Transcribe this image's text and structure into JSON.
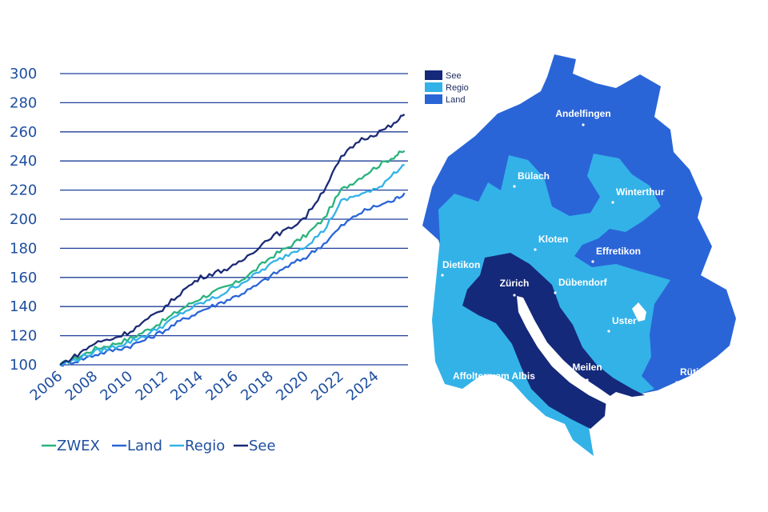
{
  "chart_data": {
    "type": "line",
    "ylim": [
      100,
      300
    ],
    "xlim": [
      2006,
      2025.8
    ],
    "yticks": [
      100,
      120,
      140,
      160,
      180,
      200,
      220,
      240,
      260,
      280,
      300
    ],
    "xticks": [
      "2006",
      "2008",
      "2010",
      "2012",
      "2014",
      "2016",
      "2018",
      "2020",
      "2022",
      "2024"
    ],
    "grid": true,
    "legend_position": "bottom",
    "series": [
      {
        "name": "ZWEX",
        "color": "#2ab37e",
        "x": [
          2006,
          2007,
          2008,
          2009,
          2010,
          2011,
          2012,
          2013,
          2014,
          2015,
          2016,
          2017,
          2018,
          2019,
          2020,
          2021,
          2022,
          2023,
          2024,
          2025,
          2025.6
        ],
        "y": [
          100,
          105,
          111,
          114,
          118,
          124,
          131,
          139,
          146,
          151,
          156,
          164,
          174,
          181,
          189,
          200,
          220,
          228,
          236,
          243,
          247
        ]
      },
      {
        "name": "Land",
        "color": "#2a65d8",
        "x": [
          2006,
          2007,
          2008,
          2009,
          2010,
          2011,
          2012,
          2013,
          2014,
          2015,
          2016,
          2017,
          2018,
          2019,
          2020,
          2021,
          2022,
          2023,
          2024,
          2025,
          2025.6
        ],
        "y": [
          100,
          103,
          107,
          110,
          113,
          118,
          124,
          131,
          137,
          142,
          147,
          153,
          161,
          168,
          174,
          183,
          195,
          204,
          209,
          213,
          218
        ]
      },
      {
        "name": "Regio",
        "color": "#33b2e8",
        "x": [
          2006,
          2007,
          2008,
          2009,
          2010,
          2011,
          2012,
          2013,
          2014,
          2015,
          2016,
          2017,
          2018,
          2019,
          2020,
          2021,
          2022,
          2023,
          2024,
          2025,
          2025.6
        ],
        "y": [
          100,
          104,
          109,
          112,
          116,
          121,
          128,
          136,
          142,
          147,
          154,
          161,
          169,
          176,
          182,
          192,
          212,
          217,
          220,
          232,
          237
        ]
      },
      {
        "name": "See",
        "color": "#1b2a75",
        "x": [
          2006,
          2007,
          2008,
          2009,
          2010,
          2011,
          2012,
          2013,
          2014,
          2015,
          2016,
          2017,
          2018,
          2019,
          2020,
          2021,
          2022,
          2023,
          2024,
          2025,
          2025.6
        ],
        "y": [
          100,
          107,
          115,
          118,
          123,
          131,
          140,
          151,
          160,
          164,
          168,
          178,
          188,
          193,
          202,
          220,
          242,
          254,
          259,
          265,
          272
        ]
      }
    ]
  },
  "map": {
    "legend": [
      {
        "label": "See",
        "color": "#15297a"
      },
      {
        "label": "Regio",
        "color": "#33b2e8"
      },
      {
        "label": "Land",
        "color": "#2a65d8"
      }
    ],
    "towns": [
      "Andelfingen",
      "Bülach",
      "Winterthur",
      "Kloten",
      "Effretikon",
      "Dietikon",
      "Zürich",
      "Dübendorf",
      "Uster",
      "Affoltern am Albis",
      "Meilen",
      "Rüti"
    ]
  }
}
